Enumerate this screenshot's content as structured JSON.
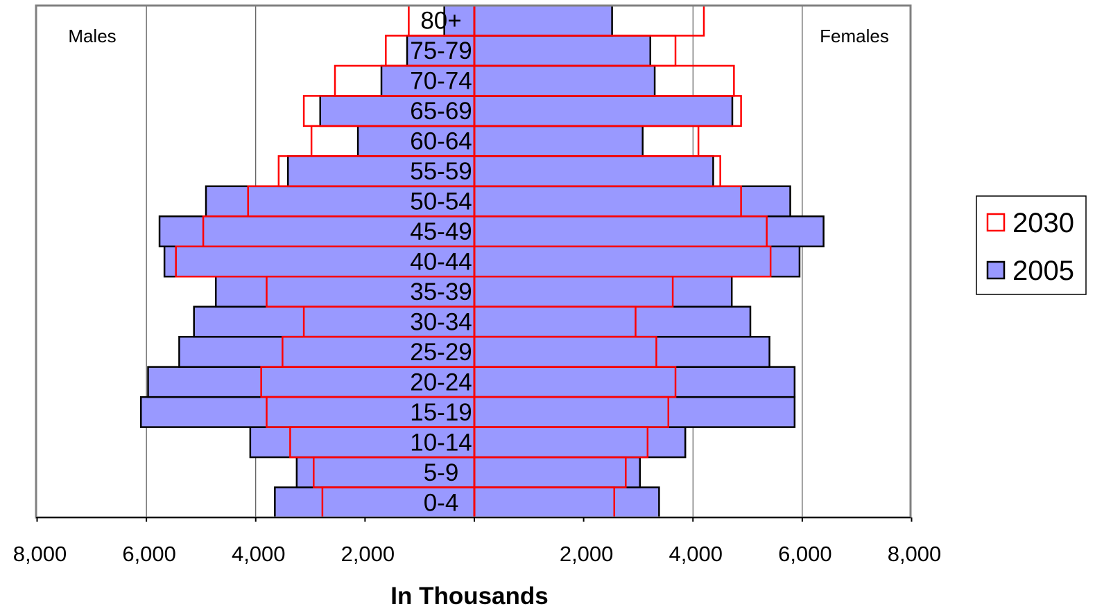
{
  "chart_data": {
    "type": "bar",
    "subtype": "population-pyramid",
    "categories": [
      "0-4",
      "5-9",
      "10-14",
      "15-19",
      "20-24",
      "25-29",
      "30-34",
      "35-39",
      "40-44",
      "45-49",
      "50-54",
      "55-59",
      "60-64",
      "65-69",
      "70-74",
      "75-79",
      "80+"
    ],
    "series": [
      {
        "name": "2005",
        "color": "#9999ff",
        "stroke": "#000000",
        "males": [
          3650,
          3250,
          4100,
          6100,
          5970,
          5400,
          5130,
          4730,
          5670,
          5760,
          4910,
          3410,
          2130,
          2820,
          1700,
          1230,
          550
        ],
        "females": [
          3380,
          3030,
          3860,
          5860,
          5860,
          5400,
          5050,
          4710,
          5950,
          6390,
          5780,
          4370,
          3080,
          4720,
          3300,
          3220,
          2520
        ]
      },
      {
        "name": "2030",
        "color": "none",
        "stroke": "#ff0000",
        "males": [
          2780,
          2940,
          3370,
          3800,
          3900,
          3510,
          3120,
          3800,
          5460,
          4960,
          4140,
          3580,
          2980,
          3120,
          2550,
          1620,
          1200
        ],
        "females": [
          2560,
          2770,
          3170,
          3550,
          3680,
          3330,
          2950,
          3630,
          5420,
          5350,
          4880,
          4500,
          4100,
          4880,
          4750,
          3680,
          4200
        ]
      }
    ],
    "side_labels": {
      "left": "Males",
      "right": "Females"
    },
    "xlabel": "In Thousands",
    "x_ticks_left": [
      "8,000",
      "6,000",
      "4,000",
      "2,000"
    ],
    "x_ticks_right": [
      "2,000",
      "4,000",
      "6,000",
      "8,000"
    ],
    "xlim": [
      -8000,
      8000
    ],
    "grid": true,
    "legend": {
      "position": "right",
      "entries": [
        "2030",
        "2005"
      ]
    }
  }
}
